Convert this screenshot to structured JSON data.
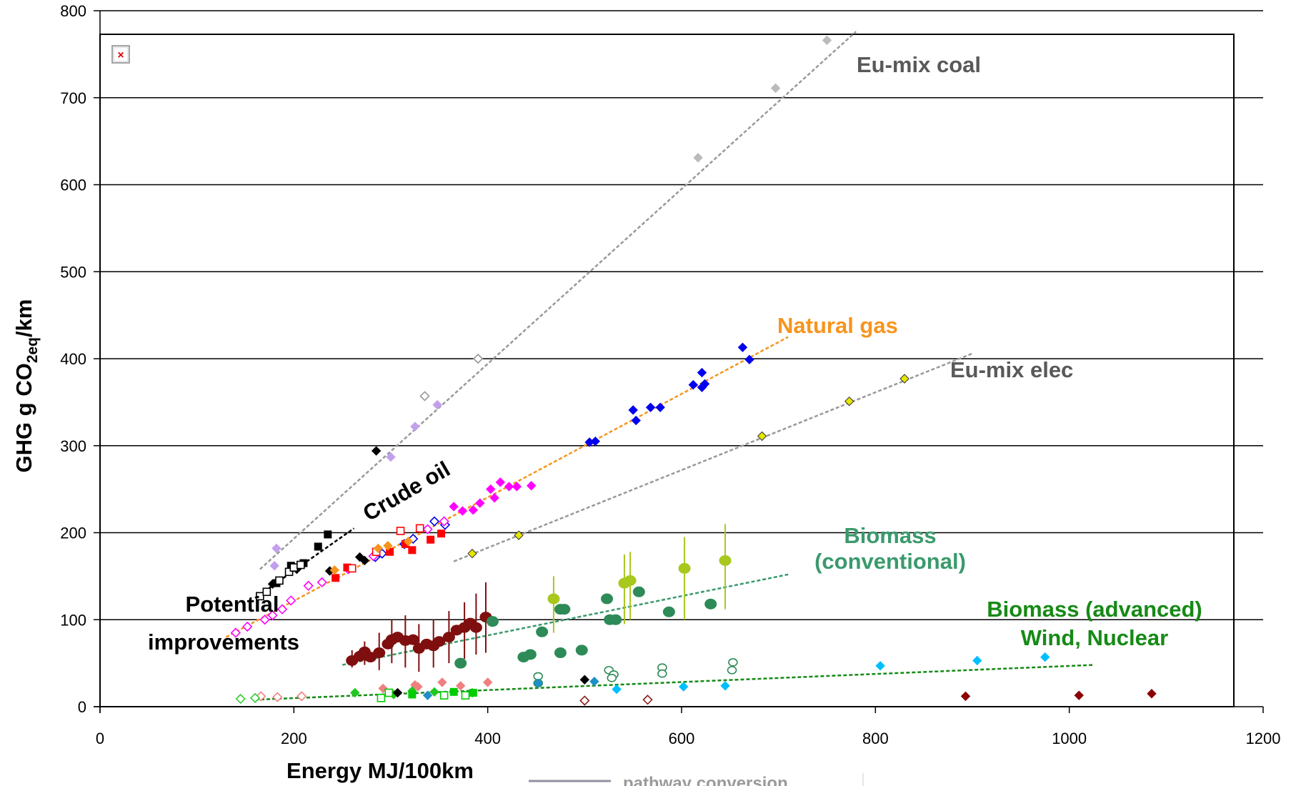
{
  "chart_data": {
    "type": "scatter",
    "xlabel": "Energy MJ/100km",
    "ylabel": "GHG g CO2eq /km",
    "ylabel_parts": {
      "main": "GHG g CO",
      "sub": "2eq",
      "tail": "/km"
    },
    "xlim": [
      0,
      1200
    ],
    "ylim": [
      0,
      800
    ],
    "xticks": [
      "0",
      "200",
      "400",
      "600",
      "800",
      "1000",
      "1200"
    ],
    "yticks": [
      "0",
      "100",
      "200",
      "300",
      "400",
      "500",
      "600",
      "700",
      "800"
    ],
    "grid": "horizontal",
    "legend_fragment": "pathway conversion",
    "annotations": [
      {
        "id": "eu-mix-coal",
        "text": "Eu-mix coal",
        "color": "#595959"
      },
      {
        "id": "natural-gas",
        "text": "Natural gas",
        "color": "#f7941d"
      },
      {
        "id": "eu-mix-elec",
        "text": "Eu-mix elec",
        "color": "#595959"
      },
      {
        "id": "crude-oil",
        "text": "Crude oil",
        "color": "#000000"
      },
      {
        "id": "biomass-conv-1",
        "text": "Biomass",
        "color": "#3a9a6c"
      },
      {
        "id": "biomass-conv-2",
        "text": "(conventional)",
        "color": "#3a9a6c"
      },
      {
        "id": "biomass-adv-1",
        "text": "Biomass (advanced)",
        "color": "#168a16"
      },
      {
        "id": "biomass-adv-2",
        "text": "Wind, Nuclear",
        "color": "#168a16"
      },
      {
        "id": "potential-1",
        "text": "Potential",
        "color": "#000000"
      },
      {
        "id": "potential-2",
        "text": "improvements",
        "color": "#000000"
      }
    ],
    "trendlines": [
      {
        "name": "coal",
        "color": "#999999",
        "x": [
          165,
          780
        ],
        "y": [
          158,
          776
        ]
      },
      {
        "name": "natural-gas",
        "color": "#f7941d",
        "x": [
          130,
          710
        ],
        "y": [
          80,
          425
        ]
      },
      {
        "name": "eu-mix-elec",
        "color": "#999999",
        "x": [
          365,
          900
        ],
        "y": [
          167,
          406
        ]
      },
      {
        "name": "crude-oil",
        "color": "#000000",
        "x": [
          160,
          262
        ],
        "y": [
          125,
          205
        ]
      },
      {
        "name": "biomass-conventional",
        "color": "#3a9a6c",
        "x": [
          250,
          710
        ],
        "y": [
          48,
          152
        ]
      },
      {
        "name": "biomass-advanced",
        "color": "#168a16",
        "x": [
          160,
          1025
        ],
        "y": [
          8,
          48
        ]
      }
    ],
    "series": [
      {
        "name": "",
        "color": "#c2a0ee",
        "marker": "diamond",
        "points": [
          [
            180,
            162
          ],
          [
            182,
            182
          ],
          [
            300,
            287
          ],
          [
            325,
            322
          ],
          [
            348,
            347
          ]
        ]
      },
      {
        "name": "",
        "color": "#bbbbbb",
        "marker": "diamond",
        "points": [
          [
            617,
            631
          ],
          [
            697,
            711
          ],
          [
            750,
            766
          ]
        ]
      },
      {
        "name": "",
        "color": "#999999",
        "marker": "diamond-open",
        "points": [
          [
            335,
            357
          ],
          [
            390,
            400
          ]
        ]
      },
      {
        "name": "",
        "color": "#000000",
        "marker": "diamond",
        "points": [
          [
            285,
            294
          ],
          [
            268,
            172
          ],
          [
            178,
            141
          ],
          [
            203,
            158
          ],
          [
            237,
            156
          ],
          [
            273,
            168
          ]
        ]
      },
      {
        "name": "",
        "color": "#000000",
        "marker": "square",
        "points": [
          [
            182,
            142
          ],
          [
            197,
            162
          ],
          [
            225,
            184
          ],
          [
            235,
            198
          ],
          [
            210,
            165
          ]
        ]
      },
      {
        "name": "",
        "color": "#000000",
        "marker": "square-open",
        "points": [
          [
            165,
            127
          ],
          [
            172,
            132
          ],
          [
            185,
            145
          ],
          [
            195,
            155
          ],
          [
            200,
            160
          ],
          [
            207,
            163
          ]
        ]
      },
      {
        "name": "",
        "color": "#0000ee",
        "marker": "diamond",
        "points": [
          [
            505,
            304
          ],
          [
            511,
            305
          ],
          [
            550,
            341
          ],
          [
            553,
            329
          ],
          [
            568,
            344
          ],
          [
            578,
            344
          ],
          [
            612,
            370
          ],
          [
            621,
            384
          ],
          [
            624,
            371
          ],
          [
            621,
            367
          ],
          [
            663,
            413
          ],
          [
            670,
            399
          ]
        ]
      },
      {
        "name": "",
        "color": "#0000ee",
        "marker": "diamond-open",
        "points": [
          [
            284,
            172
          ],
          [
            314,
            187
          ],
          [
            323,
            193
          ],
          [
            345,
            213
          ],
          [
            356,
            209
          ],
          [
            291,
            176
          ]
        ]
      },
      {
        "name": "",
        "color": "#ff00ff",
        "marker": "diamond",
        "points": [
          [
            365,
            230
          ],
          [
            374,
            225
          ],
          [
            385,
            226
          ],
          [
            392,
            234
          ],
          [
            403,
            250
          ],
          [
            407,
            240
          ],
          [
            413,
            258
          ],
          [
            422,
            253
          ],
          [
            430,
            253
          ],
          [
            445,
            254
          ]
        ]
      },
      {
        "name": "",
        "color": "#ff00ff",
        "marker": "diamond-open",
        "points": [
          [
            140,
            85
          ],
          [
            152,
            92
          ],
          [
            170,
            100
          ],
          [
            178,
            105
          ],
          [
            188,
            112
          ],
          [
            197,
            122
          ],
          [
            215,
            139
          ],
          [
            229,
            143
          ],
          [
            256,
            158
          ],
          [
            282,
            173
          ],
          [
            338,
            204
          ],
          [
            355,
            213
          ]
        ]
      },
      {
        "name": "",
        "color": "#ff0000",
        "marker": "square",
        "points": [
          [
            243,
            148
          ],
          [
            255,
            160
          ],
          [
            299,
            178
          ],
          [
            315,
            187
          ],
          [
            322,
            180
          ],
          [
            341,
            192
          ],
          [
            352,
            199
          ]
        ]
      },
      {
        "name": "",
        "color": "#ff0000",
        "marker": "square-open",
        "points": [
          [
            260,
            159
          ],
          [
            285,
            178
          ],
          [
            310,
            202
          ],
          [
            330,
            205
          ]
        ]
      },
      {
        "name": "",
        "color": "#f7941d",
        "marker": "diamond",
        "points": [
          [
            242,
            157
          ],
          [
            287,
            182
          ],
          [
            297,
            185
          ],
          [
            318,
            190
          ]
        ]
      },
      {
        "name": "",
        "color": "#7f0f0f",
        "marker": "circle",
        "points": [
          [
            260,
            53
          ],
          [
            268,
            58
          ],
          [
            273,
            63
          ],
          [
            279,
            57
          ],
          [
            288,
            62
          ],
          [
            297,
            72
          ],
          [
            301,
            77
          ],
          [
            307,
            80
          ],
          [
            315,
            76
          ],
          [
            323,
            77
          ],
          [
            329,
            67
          ],
          [
            337,
            72
          ],
          [
            344,
            70
          ],
          [
            350,
            75
          ],
          [
            360,
            80
          ],
          [
            368,
            88
          ],
          [
            376,
            91
          ],
          [
            382,
            96
          ],
          [
            388,
            91
          ],
          [
            398,
            103
          ]
        ]
      },
      {
        "name": "",
        "color": "#2e8b57",
        "marker": "circle",
        "points": [
          [
            405,
            98
          ],
          [
            372,
            50
          ],
          [
            437,
            57
          ],
          [
            444,
            60
          ],
          [
            456,
            86
          ],
          [
            475,
            112
          ],
          [
            479,
            112
          ],
          [
            475,
            62
          ],
          [
            497,
            65
          ],
          [
            523,
            124
          ],
          [
            526,
            100
          ],
          [
            532,
            100
          ],
          [
            556,
            132
          ],
          [
            587,
            109
          ],
          [
            630,
            118
          ]
        ]
      },
      {
        "name": "",
        "color": "#a8c81e",
        "marker": "circle",
        "points": [
          [
            468,
            124
          ],
          [
            541,
            142
          ],
          [
            547,
            145
          ],
          [
            603,
            159
          ],
          [
            645,
            168
          ]
        ]
      },
      {
        "name": "",
        "color": "#2e8b57",
        "marker": "circle-open",
        "points": [
          [
            452,
            35
          ],
          [
            452,
            27
          ],
          [
            525,
            42
          ],
          [
            530,
            37
          ],
          [
            528,
            33
          ],
          [
            580,
            45
          ],
          [
            580,
            38
          ],
          [
            653,
            51
          ],
          [
            652,
            42
          ]
        ]
      },
      {
        "name": "",
        "color": "#f08080",
        "marker": "diamond",
        "points": [
          [
            292,
            21
          ],
          [
            325,
            25
          ],
          [
            328,
            23
          ],
          [
            353,
            28
          ],
          [
            372,
            24
          ],
          [
            400,
            28
          ]
        ]
      },
      {
        "name": "",
        "color": "#f08080",
        "marker": "diamond-open",
        "points": [
          [
            166,
            12
          ],
          [
            183,
            11
          ],
          [
            208,
            12
          ]
        ]
      },
      {
        "name": "",
        "color": "#2ece2e",
        "marker": "diamond-open",
        "points": [
          [
            145,
            9
          ],
          [
            160,
            10
          ]
        ]
      },
      {
        "name": "",
        "color": "#1fc81f",
        "marker": "diamond",
        "points": [
          [
            263,
            16
          ],
          [
            303,
            14
          ],
          [
            322,
            18
          ],
          [
            345,
            17
          ],
          [
            384,
            16
          ]
        ]
      },
      {
        "name": "",
        "color": "#00cc00",
        "marker": "square",
        "points": [
          [
            322,
            14
          ],
          [
            365,
            17
          ],
          [
            385,
            16
          ]
        ]
      },
      {
        "name": "",
        "color": "#00cc00",
        "marker": "square-open",
        "points": [
          [
            290,
            10
          ],
          [
            298,
            16
          ],
          [
            355,
            13
          ],
          [
            377,
            13
          ]
        ]
      },
      {
        "name": "",
        "color": "#000000",
        "marker": "diamond",
        "points": [
          [
            307,
            16
          ],
          [
            500,
            31
          ]
        ]
      },
      {
        "name": "",
        "color": "#1e90c8",
        "marker": "diamond",
        "points": [
          [
            338,
            13
          ],
          [
            452,
            27
          ],
          [
            510,
            29
          ]
        ]
      },
      {
        "name": "",
        "color": "#00bfff",
        "marker": "diamond",
        "points": [
          [
            533,
            20
          ],
          [
            602,
            23
          ],
          [
            645,
            24
          ],
          [
            805,
            47
          ],
          [
            905,
            53
          ],
          [
            975,
            57
          ]
        ]
      },
      {
        "name": "",
        "color": "#8b1a1a",
        "marker": "diamond-open",
        "points": [
          [
            500,
            7
          ],
          [
            565,
            8
          ]
        ]
      },
      {
        "name": "",
        "color": "#8b0000",
        "marker": "diamond",
        "points": [
          [
            893,
            12
          ],
          [
            1010,
            13
          ],
          [
            1085,
            15
          ]
        ]
      },
      {
        "name": "",
        "color": "#e6e600",
        "marker": "diamond",
        "points": [
          [
            683,
            311
          ],
          [
            773,
            351
          ],
          [
            830,
            377
          ],
          [
            384,
            176
          ],
          [
            432,
            197
          ]
        ]
      }
    ],
    "error_bars": [
      {
        "color": "#7f0f0f",
        "x": 260,
        "low": 45,
        "high": 65
      },
      {
        "color": "#7f0f0f",
        "x": 273,
        "low": 48,
        "high": 75
      },
      {
        "color": "#7f0f0f",
        "x": 288,
        "low": 42,
        "high": 85
      },
      {
        "color": "#7f0f0f",
        "x": 301,
        "low": 50,
        "high": 100
      },
      {
        "color": "#7f0f0f",
        "x": 315,
        "low": 45,
        "high": 105
      },
      {
        "color": "#7f0f0f",
        "x": 329,
        "low": 40,
        "high": 95
      },
      {
        "color": "#7f0f0f",
        "x": 344,
        "low": 45,
        "high": 100
      },
      {
        "color": "#7f0f0f",
        "x": 360,
        "low": 50,
        "high": 110
      },
      {
        "color": "#7f0f0f",
        "x": 376,
        "low": 55,
        "high": 120
      },
      {
        "color": "#7f0f0f",
        "x": 388,
        "low": 60,
        "high": 130
      },
      {
        "color": "#7f0f0f",
        "x": 398,
        "low": 62,
        "high": 143
      },
      {
        "color": "#a8c81e",
        "x": 468,
        "low": 85,
        "high": 150
      },
      {
        "color": "#a8c81e",
        "x": 541,
        "low": 95,
        "high": 175
      },
      {
        "color": "#a8c81e",
        "x": 547,
        "low": 100,
        "high": 178
      },
      {
        "color": "#a8c81e",
        "x": 603,
        "low": 100,
        "high": 195
      },
      {
        "color": "#a8c81e",
        "x": 645,
        "low": 112,
        "high": 210
      }
    ]
  }
}
